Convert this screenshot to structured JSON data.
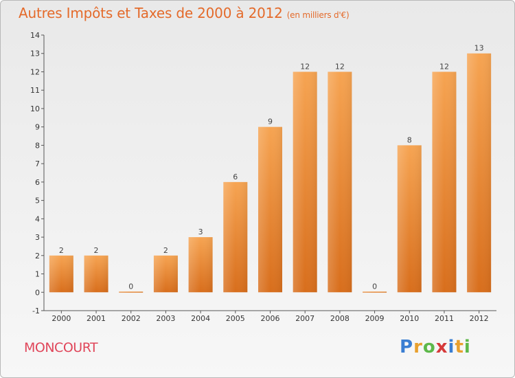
{
  "header": {
    "title": "Autres Impôts et Taxes de 2000 à 2012",
    "unit": "(en milliers d'€)"
  },
  "footer": {
    "place": "MONCOURT",
    "logo": [
      "P",
      "r",
      "o",
      "x",
      "i",
      "t",
      "i"
    ]
  },
  "colors": {
    "bar_top": "#f6a452",
    "bar_bottom": "#d86e1c",
    "title": "#e46a2a",
    "place": "#e0465a"
  },
  "chart_data": {
    "type": "bar",
    "categories": [
      "2000",
      "2001",
      "2002",
      "2003",
      "2004",
      "2005",
      "2006",
      "2007",
      "2008",
      "2009",
      "2010",
      "2011",
      "2012"
    ],
    "values": [
      2,
      2,
      0,
      2,
      3,
      6,
      9,
      12,
      12,
      0,
      8,
      12,
      13
    ],
    "ylim": [
      -1,
      14
    ],
    "yticks": [
      "-1",
      "0",
      "1",
      "2",
      "3",
      "4",
      "5",
      "6",
      "7",
      "8",
      "9",
      "10",
      "11",
      "12",
      "13",
      "14"
    ],
    "grid": false
  }
}
